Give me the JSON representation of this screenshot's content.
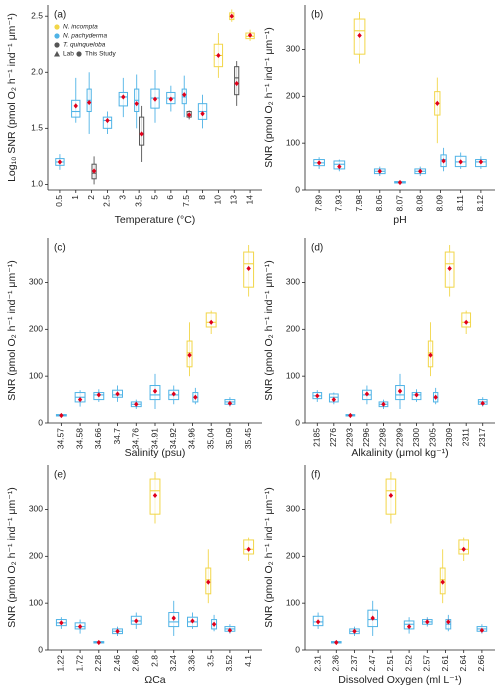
{
  "chart_data": [
    {
      "type": "box",
      "panel_label": "(a)",
      "x_label": "Temperature (°C)",
      "y_label": "Log₁₀ SNR (pmol O₂ h⁻¹ ind⁻¹ μm⁻¹)",
      "categories": [
        "0.5",
        "1",
        "2",
        "2.5",
        "3",
        "3.5",
        "5",
        "6",
        "7.5",
        "8",
        "10",
        "13",
        "14"
      ],
      "ylim": [
        0.95,
        2.6
      ],
      "yticks": [
        {
          "value": 1,
          "label": "1.0"
        },
        {
          "value": 1.5,
          "label": "1.5"
        },
        {
          "value": 2,
          "label": "2.0"
        },
        {
          "value": 2.5,
          "label": "2.5"
        }
      ],
      "marker_legend": [
        {
          "name": "Lab",
          "shape": "triangle"
        },
        {
          "name": "This Study",
          "shape": "circle"
        }
      ],
      "series": [
        {
          "name": "N. incompta",
          "color": "#f2d648",
          "values": [
            null,
            null,
            null,
            null,
            null,
            null,
            null,
            null,
            null,
            null,
            {
              "low": 1.95,
              "q1": 2.05,
              "median": 2.15,
              "q3": 2.25,
              "high": 2.35,
              "mean": 2.15
            },
            {
              "low": 2.45,
              "q1": 2.47,
              "median": 2.5,
              "q3": 2.53,
              "high": 2.56,
              "mean": 2.5
            },
            {
              "low": 2.28,
              "q1": 2.3,
              "median": 2.32,
              "q3": 2.35,
              "high": 2.38,
              "mean": 2.33
            }
          ]
        },
        {
          "name": "N. pachyderma",
          "color": "#4fb3e6",
          "values": [
            {
              "low": 1.13,
              "q1": 1.17,
              "median": 1.2,
              "q3": 1.23,
              "high": 1.27,
              "mean": 1.2
            },
            {
              "low": 1.55,
              "q1": 1.6,
              "median": 1.65,
              "q3": 1.75,
              "high": 1.95,
              "mean": 1.7
            },
            {
              "low": 1.45,
              "q1": 1.65,
              "median": 1.75,
              "q3": 1.85,
              "high": 2.0,
              "mean": 1.73
            },
            {
              "low": 1.45,
              "q1": 1.5,
              "median": 1.57,
              "q3": 1.6,
              "high": 1.65,
              "mean": 1.57
            },
            {
              "low": 1.6,
              "q1": 1.7,
              "median": 1.78,
              "q3": 1.82,
              "high": 1.95,
              "mean": 1.78
            },
            {
              "low": 1.5,
              "q1": 1.65,
              "median": 1.75,
              "q3": 1.85,
              "high": 1.98,
              "mean": 1.72
            },
            {
              "low": 1.55,
              "q1": 1.68,
              "median": 1.77,
              "q3": 1.85,
              "high": 2.02,
              "mean": 1.76
            },
            {
              "low": 1.65,
              "q1": 1.72,
              "median": 1.77,
              "q3": 1.82,
              "high": 1.88,
              "mean": 1.76
            },
            {
              "low": 1.6,
              "q1": 1.72,
              "median": 1.78,
              "q3": 1.85,
              "high": 1.97,
              "mean": 1.8
            },
            {
              "low": 1.5,
              "q1": 1.58,
              "median": 1.65,
              "q3": 1.72,
              "high": 1.8,
              "mean": 1.63
            },
            null,
            null,
            null
          ]
        },
        {
          "name": "T. quinqueloba",
          "color": "#555555",
          "values": [
            null,
            null,
            {
              "low": 1.0,
              "q1": 1.05,
              "median": 1.1,
              "q3": 1.18,
              "high": 1.25,
              "mean": 1.12
            },
            null,
            null,
            {
              "low": 1.2,
              "q1": 1.35,
              "median": 1.45,
              "q3": 1.6,
              "high": 1.7,
              "mean": 1.45
            },
            null,
            null,
            {
              "low": 1.58,
              "q1": 1.6,
              "median": 1.62,
              "q3": 1.65,
              "high": 1.66,
              "mean": 1.62
            },
            null,
            null,
            {
              "low": 1.7,
              "q1": 1.8,
              "median": 1.95,
              "q3": 2.05,
              "high": 2.1,
              "mean": 1.9
            },
            null
          ]
        }
      ]
    },
    {
      "type": "box",
      "panel_label": "(b)",
      "x_label": "pH",
      "y_label": "SNR (pmol O₂ h⁻¹ ind⁻¹ μm⁻¹)",
      "categories": [
        "7.89",
        "7.93",
        "7.98",
        "8.06",
        "8.07",
        "8.08",
        "8.09",
        "8.11",
        "8.12"
      ],
      "ylim": [
        0,
        395
      ],
      "yticks": [
        0,
        100,
        200,
        300
      ],
      "series": [
        {
          "color": "#f2d648",
          "values": [
            null,
            null,
            {
              "low": 270,
              "q1": 290,
              "median": 340,
              "q3": 365,
              "high": 380,
              "mean": 330
            },
            null,
            null,
            null,
            {
              "low": 100,
              "q1": 160,
              "median": 185,
              "q3": 210,
              "high": 240,
              "mean": 185
            },
            null,
            null
          ]
        },
        {
          "color": "#4fb3e6",
          "values": [
            {
              "low": 45,
              "q1": 52,
              "median": 58,
              "q3": 65,
              "high": 70,
              "mean": 58
            },
            {
              "low": 40,
              "q1": 45,
              "median": 55,
              "q3": 62,
              "high": 65,
              "mean": 50
            },
            null,
            {
              "low": 30,
              "q1": 35,
              "median": 40,
              "q3": 45,
              "high": 50,
              "mean": 40
            },
            {
              "low": 15,
              "q1": 15,
              "median": 17,
              "q3": 18,
              "high": 19,
              "mean": 16
            },
            {
              "low": 30,
              "q1": 35,
              "median": 40,
              "q3": 45,
              "high": 50,
              "mean": 40
            },
            {
              "low": 40,
              "q1": 50,
              "median": 65,
              "q3": 75,
              "high": 90,
              "mean": 62
            },
            {
              "low": 45,
              "q1": 50,
              "median": 60,
              "q3": 72,
              "high": 80,
              "mean": 60
            },
            {
              "low": 45,
              "q1": 50,
              "median": 60,
              "q3": 65,
              "high": 72,
              "mean": 60
            }
          ]
        }
      ]
    },
    {
      "type": "box",
      "panel_label": "(c)",
      "x_label": "Salinity (psu)",
      "y_label": "SNR (pmol O₂ h⁻¹ ind⁻¹ μm⁻¹)",
      "categories": [
        "34.57",
        "34.58",
        "34.66",
        "34.7",
        "34.76",
        "34.91",
        "34.92",
        "34.96",
        "35.04",
        "35.09",
        "35.45"
      ],
      "ylim": [
        0,
        395
      ],
      "yticks": [
        0,
        100,
        200,
        300
      ],
      "series": [
        {
          "color": "#f2d648",
          "values": [
            null,
            null,
            null,
            null,
            null,
            null,
            null,
            {
              "low": 100,
              "q1": 120,
              "median": 150,
              "q3": 175,
              "high": 215,
              "mean": 145
            },
            {
              "low": 190,
              "q1": 205,
              "median": 215,
              "q3": 235,
              "high": 240,
              "mean": 215
            },
            null,
            {
              "low": 270,
              "q1": 290,
              "median": 340,
              "q3": 365,
              "high": 380,
              "mean": 330
            }
          ]
        },
        {
          "color": "#4fb3e6",
          "values": [
            {
              "low": 15,
              "q1": 15,
              "median": 17,
              "q3": 18,
              "high": 19,
              "mean": 16
            },
            {
              "low": 35,
              "q1": 45,
              "median": 55,
              "q3": 65,
              "high": 70,
              "mean": 50
            },
            {
              "low": 45,
              "q1": 50,
              "median": 60,
              "q3": 65,
              "high": 72,
              "mean": 60
            },
            {
              "low": 45,
              "q1": 55,
              "median": 60,
              "q3": 70,
              "high": 80,
              "mean": 62
            },
            {
              "low": 30,
              "q1": 35,
              "median": 40,
              "q3": 45,
              "high": 50,
              "mean": 40
            },
            {
              "low": 30,
              "q1": 50,
              "median": 60,
              "q3": 80,
              "high": 105,
              "mean": 68
            },
            {
              "low": 40,
              "q1": 50,
              "median": 60,
              "q3": 70,
              "high": 80,
              "mean": 62
            },
            {
              "low": 40,
              "q1": 45,
              "median": 55,
              "q3": 65,
              "high": 75,
              "mean": 55
            },
            null,
            {
              "low": 35,
              "q1": 40,
              "median": 45,
              "q3": 50,
              "high": 55,
              "mean": 42
            },
            null
          ]
        }
      ]
    },
    {
      "type": "box",
      "panel_label": "(d)",
      "x_label": "Alkalinity (μmol kg⁻¹)",
      "y_label": "SNR (pmol O₂ h⁻¹ ind⁻¹ μm⁻¹)",
      "categories": [
        "2185",
        "2276",
        "2293",
        "2296",
        "2298",
        "2299",
        "2300",
        "2305",
        "2309",
        "2311",
        "2317"
      ],
      "ylim": [
        0,
        395
      ],
      "yticks": [
        0,
        100,
        200,
        300
      ],
      "series": [
        {
          "color": "#f2d648",
          "values": [
            null,
            null,
            null,
            null,
            null,
            null,
            null,
            {
              "low": 100,
              "q1": 120,
              "median": 150,
              "q3": 175,
              "high": 215,
              "mean": 145
            },
            {
              "low": 270,
              "q1": 290,
              "median": 340,
              "q3": 365,
              "high": 380,
              "mean": 330
            },
            {
              "low": 190,
              "q1": 205,
              "median": 215,
              "q3": 235,
              "high": 240,
              "mean": 215
            },
            null
          ]
        },
        {
          "color": "#4fb3e6",
          "values": [
            {
              "low": 45,
              "q1": 52,
              "median": 58,
              "q3": 65,
              "high": 70,
              "mean": 58
            },
            {
              "low": 40,
              "q1": 45,
              "median": 55,
              "q3": 62,
              "high": 65,
              "mean": 50
            },
            {
              "low": 15,
              "q1": 15,
              "median": 17,
              "q3": 18,
              "high": 19,
              "mean": 16
            },
            {
              "low": 40,
              "q1": 50,
              "median": 60,
              "q3": 70,
              "high": 80,
              "mean": 62
            },
            {
              "low": 30,
              "q1": 35,
              "median": 40,
              "q3": 45,
              "high": 50,
              "mean": 40
            },
            {
              "low": 30,
              "q1": 50,
              "median": 60,
              "q3": 80,
              "high": 105,
              "mean": 68
            },
            {
              "low": 45,
              "q1": 50,
              "median": 60,
              "q3": 65,
              "high": 72,
              "mean": 60
            },
            {
              "low": 40,
              "q1": 45,
              "median": 55,
              "q3": 65,
              "high": 75,
              "mean": 55
            },
            null,
            null,
            {
              "low": 35,
              "q1": 40,
              "median": 45,
              "q3": 50,
              "high": 55,
              "mean": 42
            }
          ]
        }
      ]
    },
    {
      "type": "box",
      "panel_label": "(e)",
      "x_label": "ΩCa",
      "y_label": "SNR (pmol O₂ h⁻¹ ind⁻¹ μm⁻¹)",
      "categories": [
        "1.22",
        "1.72",
        "2.28",
        "2.46",
        "2.66",
        "2.8",
        "3.24",
        "3.36",
        "3.5",
        "3.52",
        "4.1"
      ],
      "ylim": [
        0,
        395
      ],
      "yticks": [
        0,
        100,
        200,
        300
      ],
      "series": [
        {
          "color": "#f2d648",
          "values": [
            null,
            null,
            null,
            null,
            null,
            {
              "low": 270,
              "q1": 290,
              "median": 340,
              "q3": 365,
              "high": 380,
              "mean": 330
            },
            null,
            null,
            {
              "low": 100,
              "q1": 120,
              "median": 150,
              "q3": 175,
              "high": 215,
              "mean": 145
            },
            null,
            {
              "low": 190,
              "q1": 205,
              "median": 215,
              "q3": 235,
              "high": 240,
              "mean": 215
            }
          ]
        },
        {
          "color": "#4fb3e6",
          "values": [
            {
              "low": 45,
              "q1": 52,
              "median": 58,
              "q3": 65,
              "high": 70,
              "mean": 58
            },
            {
              "low": 35,
              "q1": 45,
              "median": 50,
              "q3": 58,
              "high": 65,
              "mean": 50
            },
            {
              "low": 15,
              "q1": 15,
              "median": 17,
              "q3": 18,
              "high": 19,
              "mean": 16
            },
            {
              "low": 30,
              "q1": 35,
              "median": 40,
              "q3": 45,
              "high": 50,
              "mean": 40
            },
            {
              "low": 45,
              "q1": 55,
              "median": 62,
              "q3": 72,
              "high": 80,
              "mean": 62
            },
            null,
            {
              "low": 30,
              "q1": 50,
              "median": 60,
              "q3": 80,
              "high": 105,
              "mean": 68
            },
            {
              "low": 45,
              "q1": 50,
              "median": 60,
              "q3": 70,
              "high": 80,
              "mean": 62
            },
            {
              "low": 40,
              "q1": 45,
              "median": 55,
              "q3": 65,
              "high": 75,
              "mean": 55
            },
            {
              "low": 35,
              "q1": 40,
              "median": 45,
              "q3": 50,
              "high": 55,
              "mean": 42
            },
            null
          ]
        }
      ]
    },
    {
      "type": "box",
      "panel_label": "(f)",
      "x_label": "Dissolved Oxygen (ml L⁻¹)",
      "y_label": "SNR (pmol O₂ h⁻¹ ind⁻¹ μm⁻¹)",
      "categories": [
        "2.31",
        "2.36",
        "2.37",
        "2.47",
        "2.51",
        "2.52",
        "2.57",
        "2.61",
        "2.64",
        "2.66"
      ],
      "ylim": [
        0,
        395
      ],
      "yticks": [
        0,
        100,
        200,
        300
      ],
      "series": [
        {
          "color": "#f2d648",
          "values": [
            null,
            null,
            null,
            null,
            {
              "low": 270,
              "q1": 290,
              "median": 340,
              "q3": 365,
              "high": 380,
              "mean": 330
            },
            null,
            null,
            {
              "low": 100,
              "q1": 120,
              "median": 150,
              "q3": 175,
              "high": 215,
              "mean": 145
            },
            {
              "low": 190,
              "q1": 205,
              "median": 215,
              "q3": 235,
              "high": 240,
              "mean": 215
            },
            null
          ]
        },
        {
          "color": "#4fb3e6",
          "values": [
            {
              "low": 45,
              "q1": 52,
              "median": 60,
              "q3": 72,
              "high": 80,
              "mean": 60
            },
            {
              "low": 15,
              "q1": 15,
              "median": 17,
              "q3": 18,
              "high": 19,
              "mean": 16
            },
            {
              "low": 30,
              "q1": 35,
              "median": 40,
              "q3": 45,
              "high": 50,
              "mean": 40
            },
            {
              "low": 30,
              "q1": 50,
              "median": 65,
              "q3": 85,
              "high": 105,
              "mean": 68
            },
            null,
            {
              "low": 35,
              "q1": 45,
              "median": 55,
              "q3": 62,
              "high": 70,
              "mean": 50
            },
            {
              "low": 50,
              "q1": 55,
              "median": 60,
              "q3": 65,
              "high": 70,
              "mean": 60
            },
            {
              "low": 40,
              "q1": 45,
              "median": 55,
              "q3": 65,
              "high": 75,
              "mean": 60
            },
            null,
            {
              "low": 35,
              "q1": 40,
              "median": 45,
              "q3": 50,
              "high": 55,
              "mean": 42
            }
          ]
        }
      ]
    }
  ]
}
